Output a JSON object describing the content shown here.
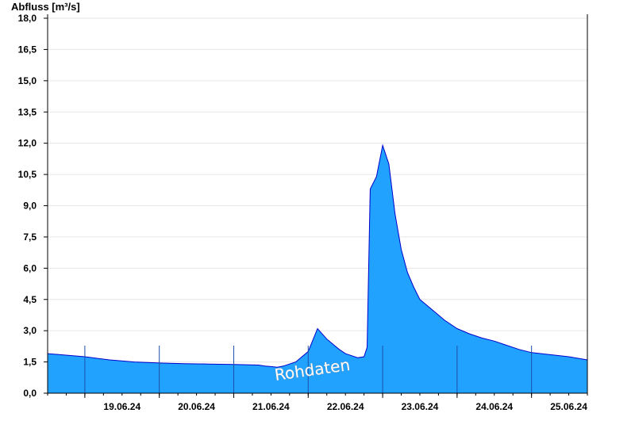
{
  "chart_data": {
    "type": "area",
    "ylabel": "Abfluss [m³/s]",
    "ylim": [
      0,
      18
    ],
    "yticks": [
      "0,0",
      "1,5",
      "3,0",
      "4,5",
      "6,0",
      "7,5",
      "9,0",
      "10,5",
      "12,0",
      "13,5",
      "15,0",
      "16,5",
      "18,0"
    ],
    "xlim": [
      "2024-06-18T12:00",
      "2024-06-25T18:00"
    ],
    "day_ticks": [
      "2024-06-19T12:00",
      "2024-06-20T12:00",
      "2024-06-21T12:00",
      "2024-06-22T12:00",
      "2024-06-23T12:00",
      "2024-06-24T12:00",
      "2024-06-25T12:00"
    ],
    "day_labels": [
      "19.06.24",
      "20.06.24",
      "21.06.24",
      "22.06.24",
      "23.06.24",
      "24.06.24",
      "25.06.24"
    ],
    "grid": true,
    "fill_color": "#22a2ff",
    "line_color": "#0000cc",
    "annotation": "Rohdaten",
    "series": [
      {
        "x": [
          "2024-06-18T12:00",
          "2024-06-18T16:00",
          "2024-06-19T00:00",
          "2024-06-19T08:00",
          "2024-06-19T16:00",
          "2024-06-20T00:00",
          "2024-06-20T08:00",
          "2024-06-20T16:00",
          "2024-06-21T00:00",
          "2024-06-21T08:00",
          "2024-06-21T10:00",
          "2024-06-21T12:00",
          "2024-06-21T14:00",
          "2024-06-21T16:00",
          "2024-06-21T20:00",
          "2024-06-22T00:00",
          "2024-06-22T03:00",
          "2024-06-22T06:00",
          "2024-06-22T08:00",
          "2024-06-22T10:00",
          "2024-06-22T12:00",
          "2024-06-22T14:00",
          "2024-06-22T16:00",
          "2024-06-22T18:00",
          "2024-06-22T19:00",
          "2024-06-22T20:00",
          "2024-06-22T22:00",
          "2024-06-23T00:00",
          "2024-06-23T02:00",
          "2024-06-23T04:00",
          "2024-06-23T06:00",
          "2024-06-23T08:00",
          "2024-06-23T10:00",
          "2024-06-23T12:00",
          "2024-06-23T16:00",
          "2024-06-23T20:00",
          "2024-06-24T00:00",
          "2024-06-24T04:00",
          "2024-06-24T08:00",
          "2024-06-24T12:00",
          "2024-06-24T16:00",
          "2024-06-24T20:00",
          "2024-06-25T00:00",
          "2024-06-25T06:00",
          "2024-06-25T12:00",
          "2024-06-25T18:00"
        ],
        "values": [
          1.9,
          1.85,
          1.75,
          1.6,
          1.5,
          1.45,
          1.42,
          1.4,
          1.38,
          1.35,
          1.3,
          1.28,
          1.25,
          1.3,
          1.5,
          2.0,
          3.1,
          2.6,
          2.35,
          2.1,
          1.9,
          1.8,
          1.7,
          1.75,
          2.2,
          9.8,
          10.4,
          11.9,
          11.0,
          8.6,
          6.9,
          5.8,
          5.1,
          4.5,
          4.0,
          3.5,
          3.1,
          2.85,
          2.65,
          2.5,
          2.3,
          2.1,
          1.95,
          1.85,
          1.75,
          1.6
        ]
      }
    ]
  }
}
